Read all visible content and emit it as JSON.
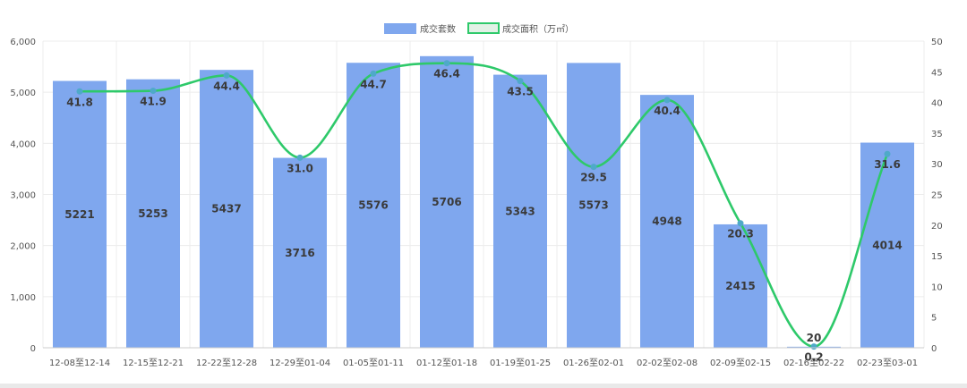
{
  "chart_data": {
    "type": "bar",
    "categories": [
      "12-08至12-14",
      "12-15至12-21",
      "12-22至12-28",
      "12-29至01-04",
      "01-05至01-11",
      "01-12至01-18",
      "01-19至01-25",
      "01-26至02-01",
      "02-02至02-08",
      "02-09至02-15",
      "02-16至02-22",
      "02-23至03-01"
    ],
    "series": [
      {
        "name": "成交套数",
        "type": "bar",
        "axis": "left",
        "color": "#7fa7ee",
        "values": [
          5221,
          5253,
          5437,
          3716,
          5576,
          5706,
          5343,
          5573,
          4948,
          2415,
          20,
          4014
        ]
      },
      {
        "name": "成交面积（万㎡）",
        "type": "line",
        "axis": "right",
        "color": "#2ec96a",
        "values": [
          41.8,
          41.9,
          44.4,
          31.0,
          44.7,
          46.4,
          43.5,
          29.5,
          40.4,
          20.3,
          0.2,
          31.6
        ]
      }
    ],
    "bar_labels": [
      "5221",
      "5253",
      "5437",
      "3716",
      "5576",
      "5706",
      "5343",
      "5573",
      "4948",
      "2415",
      "20",
      "4014"
    ],
    "line_labels": [
      "41.8",
      "41.9",
      "44.4",
      "31.0",
      "44.7",
      "46.4",
      "43.5",
      "29.5",
      "40.4",
      "20.3",
      "0.2",
      "31.6"
    ],
    "y_left": {
      "ylim": [
        0,
        6000
      ],
      "ticks": [
        "0",
        "1,000",
        "2,000",
        "3,000",
        "4,000",
        "5,000",
        "6,000"
      ]
    },
    "y_right": {
      "ylim": [
        0,
        50
      ],
      "ticks": [
        "0",
        "5",
        "10",
        "15",
        "20",
        "25",
        "30",
        "35",
        "40",
        "45",
        "50"
      ]
    },
    "grid": true,
    "legend": "top-center"
  }
}
